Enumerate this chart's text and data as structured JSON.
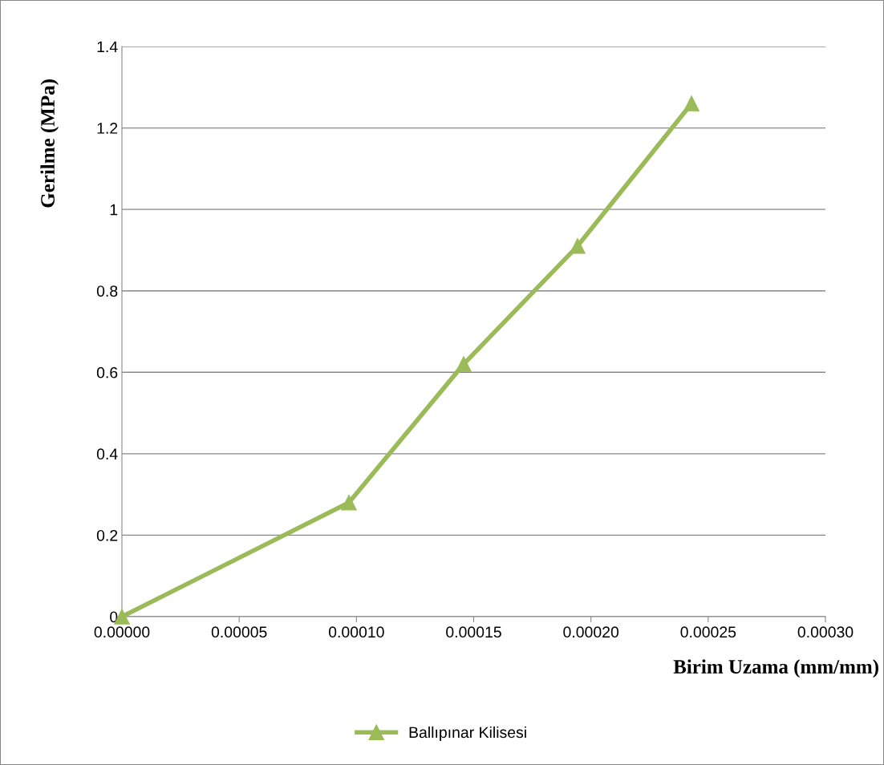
{
  "chart_data": {
    "type": "line",
    "xlabel": "Birim Uzama (mm/mm)",
    "ylabel": "Gerilme (MPa)",
    "x": [
      0,
      9.68e-05,
      0.0001457,
      0.0001943,
      0.0002429
    ],
    "series": [
      {
        "name": "Ballıpınar Kilisesi",
        "color": "#9bbb59",
        "values": [
          0,
          0.28,
          0.62,
          0.91,
          1.26
        ]
      }
    ],
    "xlim": [
      0,
      0.0003
    ],
    "xticks": [
      {
        "value": 0,
        "label": "0.00000"
      },
      {
        "value": 5e-05,
        "label": "0.00005"
      },
      {
        "value": 0.0001,
        "label": "0.00010"
      },
      {
        "value": 0.00015,
        "label": "0.00015"
      },
      {
        "value": 0.0002,
        "label": "0.00020"
      },
      {
        "value": 0.00025,
        "label": "0.00025"
      },
      {
        "value": 0.0003,
        "label": "0.00030"
      }
    ],
    "ylim": [
      0,
      1.4
    ],
    "yticks": [
      0,
      0.2,
      0.4,
      0.6,
      0.8,
      1,
      1.2,
      1.4
    ],
    "grid": "y",
    "legend": "bottom",
    "marker": "triangle",
    "line_style": "solid"
  }
}
